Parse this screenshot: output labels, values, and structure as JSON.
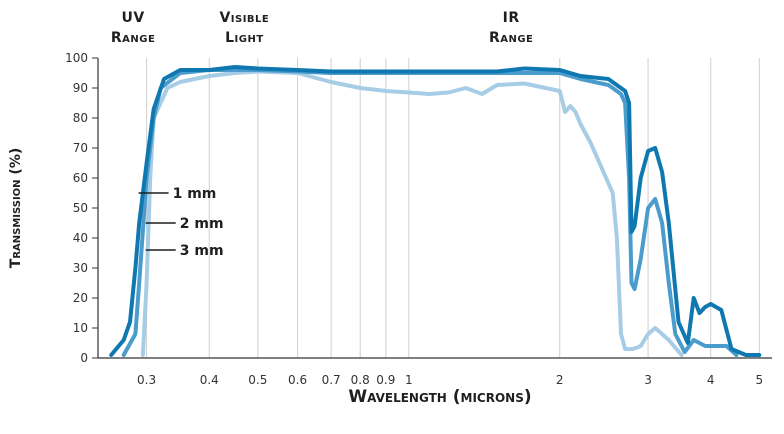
{
  "chart_data": {
    "type": "line",
    "xlabel": "Wavelength (microns)",
    "ylabel": "Transmission (%)",
    "x_scale": "log",
    "xlim": [
      0.24,
      5.3
    ],
    "ylim": [
      0,
      100
    ],
    "x_ticks": [
      0.3,
      0.4,
      0.5,
      0.6,
      0.7,
      0.8,
      0.9,
      1,
      2,
      3,
      4,
      5
    ],
    "x_tick_labels": [
      "0.3",
      "0.4",
      "0.5",
      "0.6",
      "0.7",
      "0.8",
      "0.9",
      "1",
      "2",
      "3",
      "4",
      "5"
    ],
    "y_ticks": [
      0,
      10,
      20,
      30,
      40,
      50,
      60,
      70,
      80,
      90,
      100
    ],
    "y_tick_labels": [
      "0",
      "10",
      "20",
      "30",
      "40",
      "50",
      "60",
      "70",
      "80",
      "90",
      "100"
    ],
    "grid": "vertical",
    "regions": [
      {
        "label_line1": "UV",
        "label_line2": "Range",
        "center_x": 0.282
      },
      {
        "label_line1": "Visible",
        "label_line2": "Light",
        "center_x": 0.47
      },
      {
        "label_line1": "IR",
        "label_line2": "Range",
        "center_x": 1.6
      }
    ],
    "series": [
      {
        "name": "1 mm",
        "color": "#0f78b0",
        "label_at": [
          0.3,
          55
        ],
        "x": [
          0.255,
          0.27,
          0.278,
          0.285,
          0.29,
          0.3,
          0.31,
          0.325,
          0.35,
          0.4,
          0.45,
          0.5,
          0.6,
          0.7,
          0.8,
          1.0,
          1.2,
          1.5,
          1.7,
          2.0,
          2.2,
          2.5,
          2.7,
          2.75,
          2.78,
          2.82,
          2.9,
          3.0,
          3.1,
          3.2,
          3.3,
          3.45,
          3.6,
          3.7,
          3.8,
          3.9,
          4.0,
          4.2,
          4.4,
          4.7,
          5.0
        ],
        "y": [
          1,
          6,
          12,
          30,
          45,
          65,
          83,
          93,
          96,
          96,
          97,
          96.5,
          96,
          95.5,
          95.5,
          95.5,
          95.5,
          95.5,
          96.5,
          96,
          94,
          93,
          89,
          85,
          42,
          44,
          60,
          69,
          70,
          62,
          45,
          12,
          5,
          20,
          15,
          17,
          18,
          16,
          3,
          1,
          1
        ]
      },
      {
        "name": "2 mm",
        "color": "#4a9ccc",
        "label_at": [
          0.31,
          45
        ],
        "x": [
          0.27,
          0.285,
          0.29,
          0.3,
          0.31,
          0.32,
          0.35,
          0.4,
          0.45,
          0.5,
          0.6,
          0.7,
          0.8,
          1.0,
          1.2,
          1.5,
          1.7,
          2.0,
          2.2,
          2.5,
          2.65,
          2.7,
          2.75,
          2.78,
          2.82,
          2.9,
          3.0,
          3.1,
          3.2,
          3.3,
          3.4,
          3.55,
          3.7,
          3.9,
          4.1,
          4.3,
          4.5
        ],
        "y": [
          1,
          8,
          25,
          60,
          80,
          90,
          95,
          96,
          96,
          96,
          95.5,
          95,
          95,
          95,
          95,
          95,
          95,
          95,
          93,
          91,
          88,
          85,
          60,
          25,
          23,
          33,
          50,
          53,
          45,
          25,
          8,
          2,
          6,
          4,
          4,
          4,
          1
        ]
      },
      {
        "name": "3 mm",
        "color": "#a6cce6",
        "label_at": [
          0.31,
          36
        ],
        "x": [
          0.295,
          0.3,
          0.305,
          0.31,
          0.33,
          0.35,
          0.4,
          0.45,
          0.5,
          0.6,
          0.7,
          0.8,
          0.9,
          1.0,
          1.1,
          1.2,
          1.3,
          1.4,
          1.5,
          1.7,
          2.0,
          2.05,
          2.1,
          2.15,
          2.2,
          2.3,
          2.4,
          2.55,
          2.6,
          2.65,
          2.7,
          2.8,
          2.9,
          3.0,
          3.1,
          3.3,
          3.5
        ],
        "y": [
          1,
          25,
          60,
          80,
          90,
          92,
          94,
          95,
          95.5,
          95,
          92,
          90,
          89,
          88.5,
          88,
          88.5,
          90,
          88,
          91,
          91.5,
          89,
          82,
          84,
          82,
          78,
          72,
          65,
          55,
          40,
          8,
          3,
          3,
          4,
          8,
          10,
          6,
          1
        ]
      }
    ]
  }
}
